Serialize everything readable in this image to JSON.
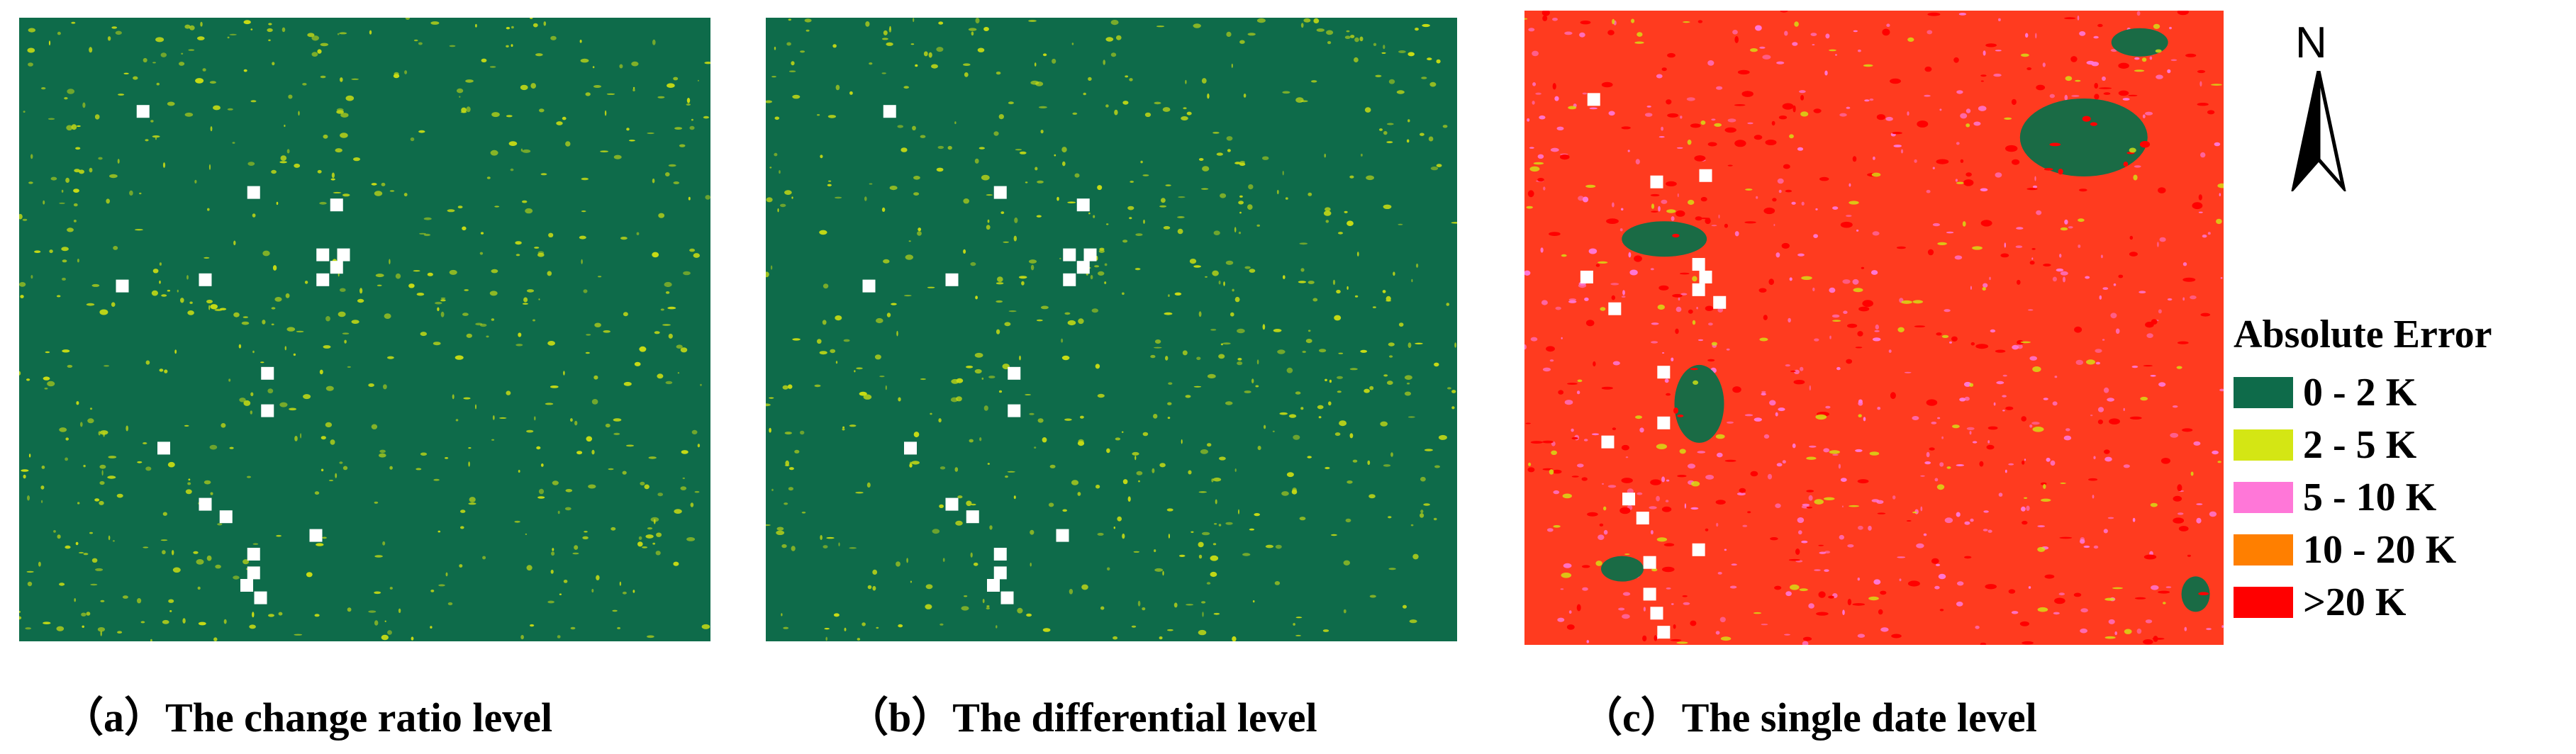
{
  "panels": [
    {
      "id": "a",
      "caption": "（a）The change ratio level",
      "base": "#0e6b4a",
      "spot_color": "#c8dc14",
      "spot_density": 0.45
    },
    {
      "id": "b",
      "caption": "（b）The differential level",
      "base": "#0e6b4a",
      "spot_color": "#c8dc14",
      "spot_density": 0.45
    },
    {
      "id": "c",
      "caption": "（c）The single date level",
      "base": "#ff3b1f",
      "spot_color": "#ff77d8",
      "spot_density": 0.35
    }
  ],
  "north_arrow": {
    "label": "N"
  },
  "legend": {
    "title": "Absolute Error",
    "items": [
      {
        "label": "0 - 2 K",
        "color": "#0e6b4a"
      },
      {
        "label": "2 - 5 K",
        "color": "#d4e614"
      },
      {
        "label": "5 - 10 K",
        "color": "#ff77d8"
      },
      {
        "label": "10 - 20 K",
        "color": "#ff7f00"
      },
      {
        "label": ">20 K",
        "color": "#ff0000"
      }
    ]
  }
}
